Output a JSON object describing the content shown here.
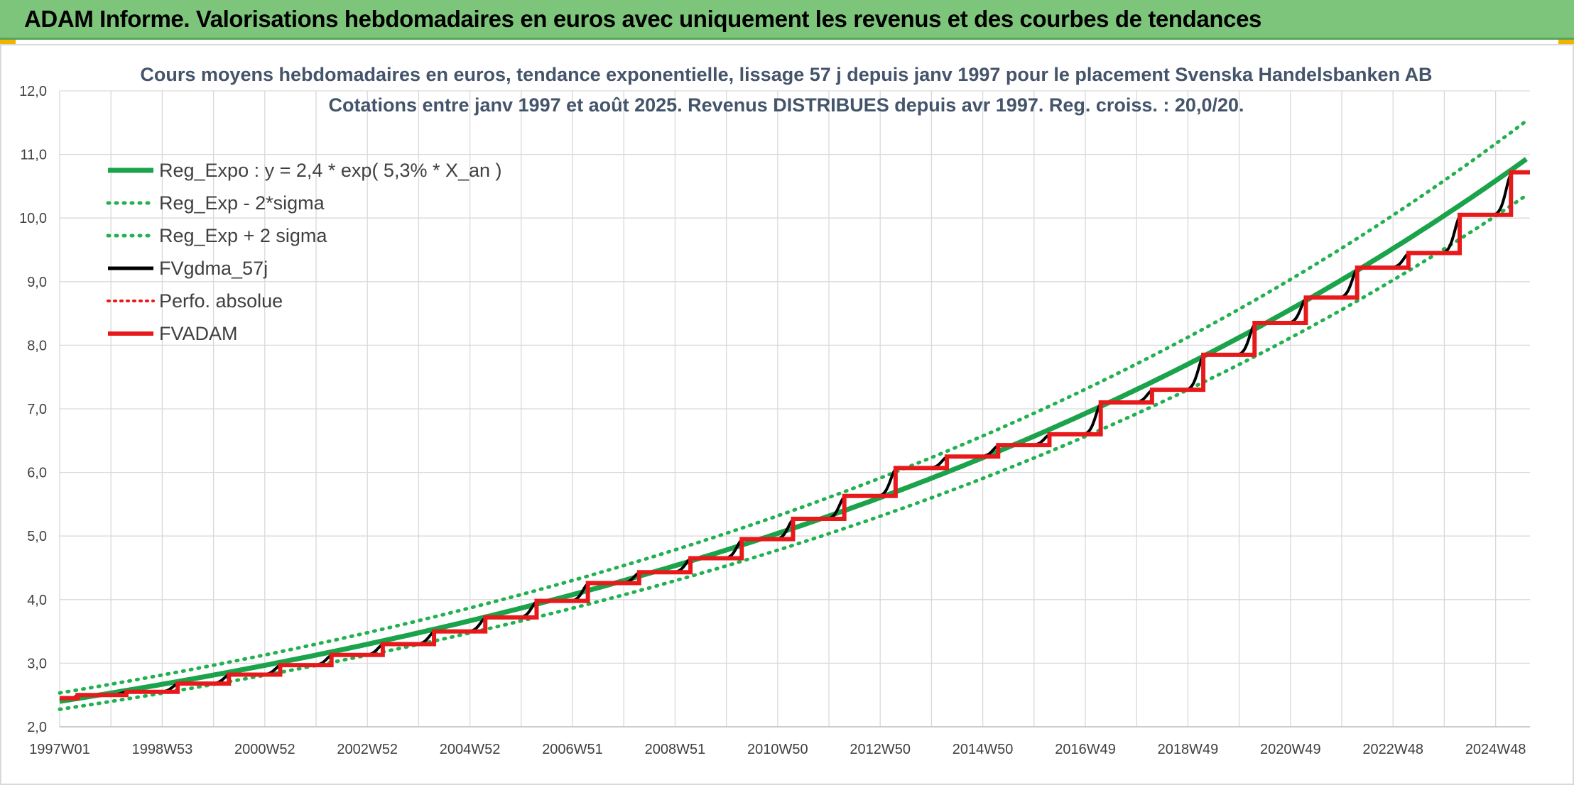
{
  "header": {
    "title": "ADAM Informe. Valorisations hebdomadaires en euros avec uniquement les revenus et des courbes de tendances"
  },
  "colors": {
    "header_bg": "#7dc57a",
    "reg_green": "#1aa34a",
    "dotted_green": "#22b050",
    "fv_black": "#000000",
    "adam_red": "#e8191b",
    "perfo_red": "#e8191b",
    "title_blue": "#44546a"
  },
  "chart_data": {
    "type": "line",
    "title_line1": "Cours moyens hebdomadaires en euros, tendance exponentielle, lissage 57 j depuis janv 1997 pour le placement Svenska Handelsbanken AB",
    "title_line2": "Cotations entre janv 1997 et août 2025. Revenus DISTRIBUES depuis avr 1997. Reg. croiss. : 20,0/20.",
    "xlabel": "",
    "ylabel": "",
    "ylim": [
      2.0,
      12.0
    ],
    "y_ticks": [
      "2,0",
      "3,0",
      "4,0",
      "5,0",
      "6,0",
      "7,0",
      "8,0",
      "9,0",
      "10,0",
      "11,0",
      "12,0"
    ],
    "x_ticks": [
      "1997W01",
      "1998W53",
      "2000W52",
      "2002W52",
      "2004W52",
      "2006W51",
      "2008W51",
      "2010W50",
      "2012W50",
      "2014W50",
      "2016W49",
      "2018W49",
      "2020W49",
      "2022W48",
      "2024W48"
    ],
    "x_range_years": [
      1997.0,
      2025.67
    ],
    "grid": true,
    "legend_position": "top-left",
    "regression": {
      "a": 2.4,
      "rate": 0.053,
      "band_ratio": 1.055
    },
    "legend": [
      {
        "key": "reg",
        "label": "Reg_Expo : y = 2,4 * exp( 5,3% *  X_an )"
      },
      {
        "key": "low",
        "label": "Reg_Exp - 2*sigma"
      },
      {
        "key": "high",
        "label": "Reg_Exp + 2 sigma"
      },
      {
        "key": "fv",
        "label": "FVgdma_57j"
      },
      {
        "key": "perfo",
        "label": "Perfo. absolue"
      },
      {
        "key": "adam",
        "label": "FVADAM"
      }
    ],
    "adam_steps": [
      {
        "x": 1997.0,
        "y": 2.45
      },
      {
        "x": 1997.35,
        "y": 2.5
      },
      {
        "x": 1998.3,
        "y": 2.55
      },
      {
        "x": 1999.3,
        "y": 2.68
      },
      {
        "x": 2000.3,
        "y": 2.82
      },
      {
        "x": 2001.3,
        "y": 2.97
      },
      {
        "x": 2002.3,
        "y": 3.13
      },
      {
        "x": 2003.3,
        "y": 3.3
      },
      {
        "x": 2004.3,
        "y": 3.5
      },
      {
        "x": 2005.3,
        "y": 3.72
      },
      {
        "x": 2006.3,
        "y": 3.98
      },
      {
        "x": 2007.3,
        "y": 4.26
      },
      {
        "x": 2008.3,
        "y": 4.43
      },
      {
        "x": 2009.3,
        "y": 4.65
      },
      {
        "x": 2010.3,
        "y": 4.95
      },
      {
        "x": 2011.3,
        "y": 5.27
      },
      {
        "x": 2012.3,
        "y": 5.63
      },
      {
        "x": 2013.3,
        "y": 6.07
      },
      {
        "x": 2014.3,
        "y": 6.25
      },
      {
        "x": 2015.3,
        "y": 6.43
      },
      {
        "x": 2016.3,
        "y": 6.6
      },
      {
        "x": 2017.3,
        "y": 7.1
      },
      {
        "x": 2018.3,
        "y": 7.3
      },
      {
        "x": 2019.3,
        "y": 7.85
      },
      {
        "x": 2020.3,
        "y": 8.35
      },
      {
        "x": 2021.3,
        "y": 8.75
      },
      {
        "x": 2022.3,
        "y": 9.22
      },
      {
        "x": 2023.3,
        "y": 9.45
      },
      {
        "x": 2024.3,
        "y": 10.05
      },
      {
        "x": 2025.3,
        "y": 10.72
      }
    ],
    "x_end": 2025.67
  }
}
